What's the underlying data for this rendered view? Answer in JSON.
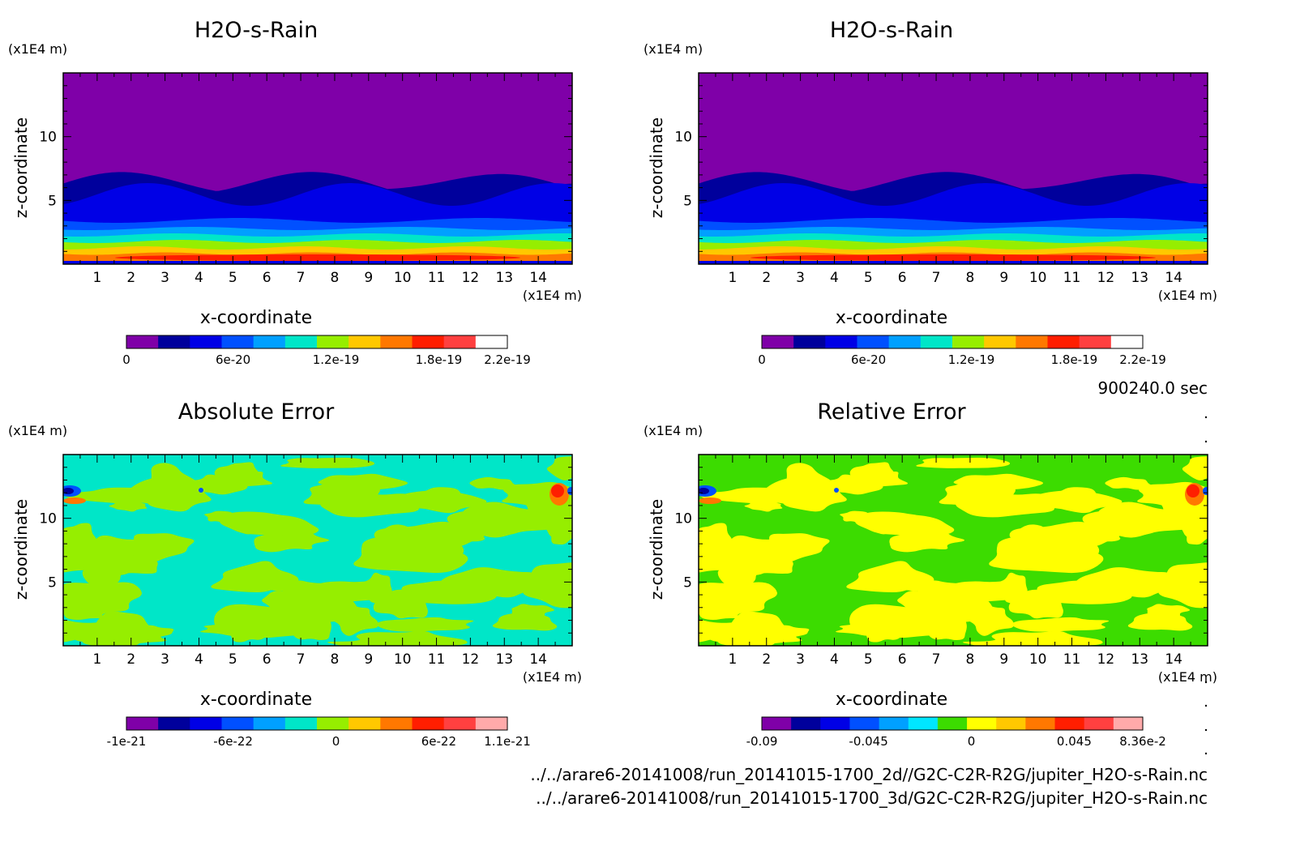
{
  "figure": {
    "time_label": "900240.0 sec",
    "file_paths": [
      "../../arare6-20141008/run_20141015-1700_2d//G2C-C2R-R2G/jupiter_H2O-s-Rain.nc",
      "../../arare6-20141008/run_20141015-1700_3d/G2C-C2R-R2G/jupiter_H2O-s-Rain.nc"
    ]
  },
  "chart_data": [
    {
      "type": "heatmap",
      "title": "H2O-s-Rain",
      "xlabel": "x-coordinate",
      "ylabel": "z-coordinate",
      "x_unit": "(x1E4 m)",
      "y_unit": "(x1E4 m)",
      "xlim": [
        0,
        15
      ],
      "ylim": [
        0,
        15
      ],
      "x_ticks": [
        "1",
        "2",
        "3",
        "4",
        "5",
        "6",
        "7",
        "8",
        "9",
        "10",
        "11",
        "12",
        "13",
        "14"
      ],
      "y_ticks": [
        "5",
        "10"
      ],
      "colorbar": {
        "colors": [
          "#7f00a8",
          "#00009c",
          "#0000e6",
          "#0050ff",
          "#00a0ff",
          "#00e6c8",
          "#96ee00",
          "#ffc800",
          "#ff7800",
          "#ff1e00",
          "#ff4040",
          "#ffffff"
        ],
        "tick_labels": [
          "0",
          "6e-20",
          "1.2e-19",
          "1.8e-19",
          "2.2e-19"
        ]
      }
    },
    {
      "type": "heatmap",
      "title": "H2O-s-Rain",
      "xlabel": "x-coordinate",
      "ylabel": "z-coordinate",
      "x_unit": "(x1E4 m)",
      "y_unit": "(x1E4 m)",
      "xlim": [
        0,
        15
      ],
      "ylim": [
        0,
        15
      ],
      "x_ticks": [
        "1",
        "2",
        "3",
        "4",
        "5",
        "6",
        "7",
        "8",
        "9",
        "10",
        "11",
        "12",
        "13",
        "14"
      ],
      "y_ticks": [
        "5",
        "10"
      ],
      "colorbar": {
        "colors": [
          "#7f00a8",
          "#00009c",
          "#0000e6",
          "#0050ff",
          "#00a0ff",
          "#00e6c8",
          "#96ee00",
          "#ffc800",
          "#ff7800",
          "#ff1e00",
          "#ff4040",
          "#ffffff"
        ],
        "tick_labels": [
          "0",
          "6e-20",
          "1.2e-19",
          "1.8e-19",
          "2.2e-19"
        ]
      }
    },
    {
      "type": "heatmap",
      "title": "Absolute Error",
      "xlabel": "x-coordinate",
      "ylabel": "z-coordinate",
      "x_unit": "(x1E4 m)",
      "y_unit": "(x1E4 m)",
      "xlim": [
        0,
        15
      ],
      "ylim": [
        0,
        15
      ],
      "x_ticks": [
        "1",
        "2",
        "3",
        "4",
        "5",
        "6",
        "7",
        "8",
        "9",
        "10",
        "11",
        "12",
        "13",
        "14"
      ],
      "y_ticks": [
        "5",
        "10"
      ],
      "colorbar": {
        "colors": [
          "#7f00a8",
          "#00009c",
          "#0000e6",
          "#0050ff",
          "#00a0ff",
          "#00e6c8",
          "#96ee00",
          "#ffc800",
          "#ff7800",
          "#ff1e00",
          "#ff4040",
          "#ffaaaa"
        ],
        "tick_labels": [
          "-1e-21",
          "-6e-22",
          "0",
          "6e-22",
          "1.1e-21"
        ]
      }
    },
    {
      "type": "heatmap",
      "title": "Relative Error",
      "xlabel": "x-coordinate",
      "ylabel": "z-coordinate",
      "x_unit": "(x1E4 m)",
      "y_unit": "(x1E4 m)",
      "xlim": [
        0,
        15
      ],
      "ylim": [
        0,
        15
      ],
      "x_ticks": [
        "1",
        "2",
        "3",
        "4",
        "5",
        "6",
        "7",
        "8",
        "9",
        "10",
        "11",
        "12",
        "13",
        "14"
      ],
      "y_ticks": [
        "5",
        "10"
      ],
      "colorbar": {
        "colors": [
          "#7f00a8",
          "#00009c",
          "#0000e6",
          "#0050ff",
          "#00a0ff",
          "#00e6ff",
          "#3cdc00",
          "#ffff00",
          "#ffc800",
          "#ff7800",
          "#ff1e00",
          "#ff4040",
          "#ffaaaa"
        ],
        "tick_labels": [
          "-0.09",
          "-0.045",
          "0",
          "0.045",
          "8.36e-2"
        ]
      }
    }
  ]
}
